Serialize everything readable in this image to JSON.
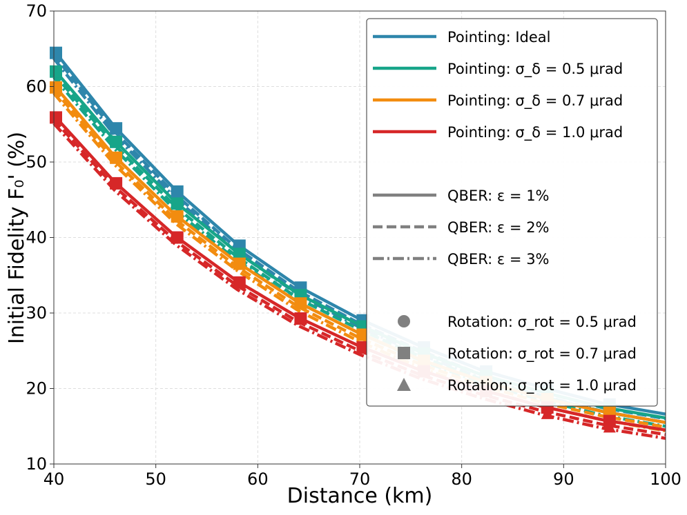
{
  "chart_data": {
    "type": "line",
    "title": "",
    "xlabel": "Distance (km)",
    "ylabel": "Initial Fidelity F₀' (%)",
    "xlim": [
      40,
      100
    ],
    "ylim": [
      10,
      70
    ],
    "xticks": [
      40,
      50,
      60,
      70,
      80,
      90,
      100
    ],
    "yticks": [
      10,
      20,
      30,
      40,
      50,
      60,
      70
    ],
    "grid": true,
    "legend_position": "top-right",
    "x": [
      40,
      46,
      52,
      58,
      64,
      70,
      76,
      82,
      88,
      94,
      100
    ],
    "marker_x": [
      40.2,
      46.1,
      52.1,
      58.2,
      64.2,
      70.3,
      76.3,
      82.4,
      88.4,
      94.5
    ],
    "series": [
      {
        "name": "Pointing: Ideal",
        "color": "#2e86ab",
        "values": [
          64.8,
          54.6,
          46.2,
          39.1,
          33.5,
          29.2,
          25.6,
          22.4,
          20.1,
          18.0,
          16.6
        ]
      },
      {
        "name": "Pointing: σ_δ = 0.5 μrad",
        "color": "#17a589",
        "values": [
          62.3,
          52.8,
          44.6,
          38.0,
          32.5,
          28.4,
          24.8,
          21.8,
          19.5,
          17.5,
          16.1
        ]
      },
      {
        "name": "Pointing: σ_δ = 0.7 μrad",
        "color": "#f28c0f",
        "values": [
          60.2,
          50.7,
          42.9,
          36.7,
          31.4,
          27.3,
          23.8,
          21.0,
          18.7,
          16.9,
          15.5
        ]
      },
      {
        "name": "Pointing: σ_δ = 1.0 μrad",
        "color": "#d62728",
        "values": [
          56.2,
          47.3,
          40.1,
          34.2,
          29.4,
          25.6,
          22.4,
          19.8,
          17.6,
          15.8,
          14.5
        ]
      }
    ],
    "qber_offsets": [
      0,
      -0.6,
      -1.1
    ],
    "legend": {
      "pointing": [
        "Pointing: Ideal",
        "Pointing: σ_δ = 0.5 μrad",
        "Pointing: σ_δ = 0.7 μrad",
        "Pointing: σ_δ = 1.0 μrad"
      ],
      "qber": [
        "QBER: ε = 1%",
        "QBER: ε = 2%",
        "QBER: ε = 3%"
      ],
      "rotation": [
        "Rotation: σ_rot = 0.5 μrad",
        "Rotation: σ_rot = 0.7 μrad",
        "Rotation: σ_rot = 1.0 μrad"
      ]
    }
  }
}
